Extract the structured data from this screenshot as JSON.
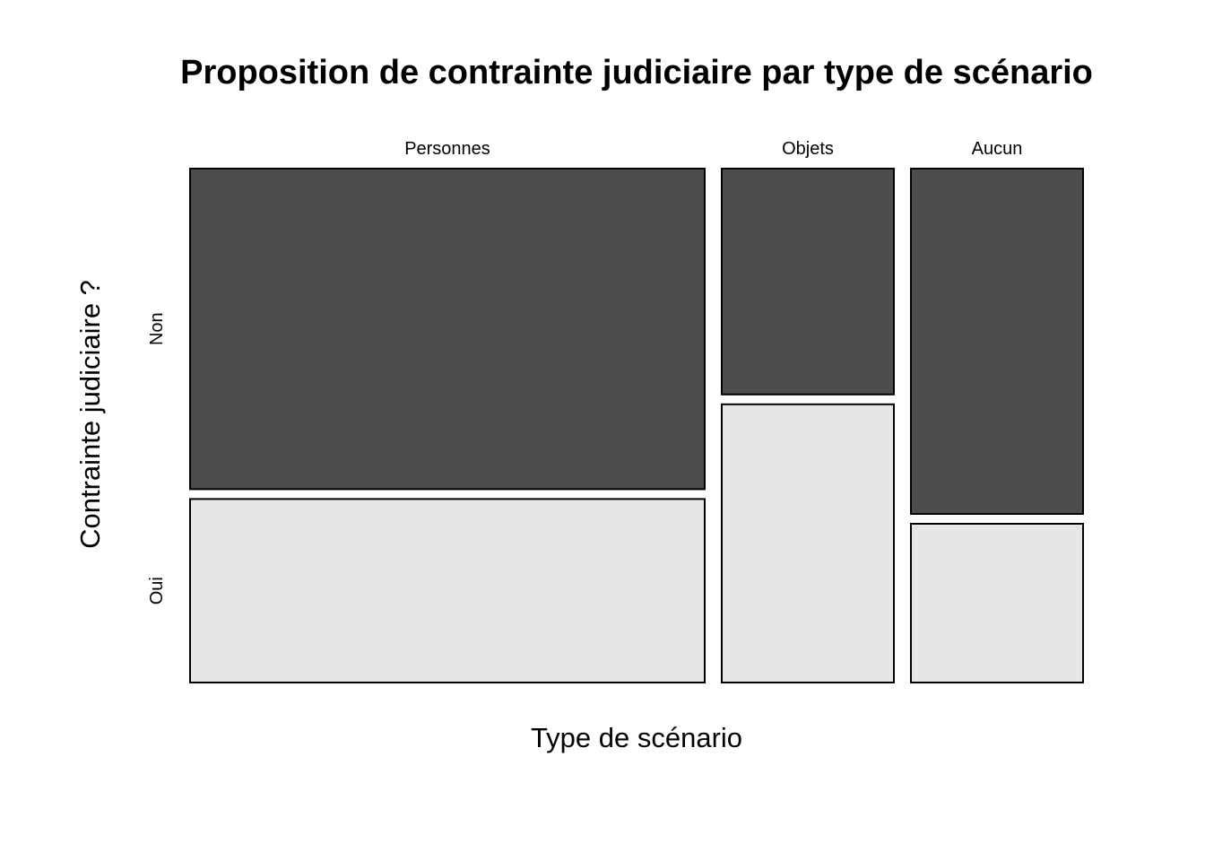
{
  "chart_data": {
    "type": "mosaic",
    "title": "Proposition de contrainte judiciaire par type de scénario",
    "xlabel": "Type de scénario",
    "ylabel": "Contrainte judiciaire ?",
    "categories": [
      "Personnes",
      "Objets",
      "Aucun"
    ],
    "column_proportions": [
      0.577,
      0.193,
      0.193
    ],
    "levels": [
      "Non",
      "Oui"
    ],
    "series": [
      {
        "name": "Non",
        "values": [
          0.636,
          0.448,
          0.685
        ]
      },
      {
        "name": "Oui",
        "values": [
          0.364,
          0.552,
          0.315
        ]
      }
    ],
    "colors": {
      "Non": "#4d4d4d",
      "Oui": "#e6e6e6"
    },
    "grid": false,
    "legend": "none"
  }
}
